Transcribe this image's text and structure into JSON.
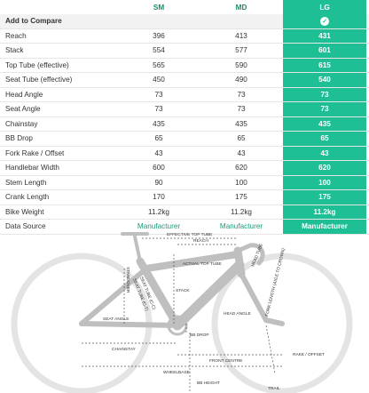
{
  "sizes": [
    "SM",
    "MD",
    "LG"
  ],
  "compare_label": "Add to Compare",
  "rows": [
    {
      "label": "Reach",
      "values": [
        "396",
        "413",
        "431"
      ]
    },
    {
      "label": "Stack",
      "values": [
        "554",
        "577",
        "601"
      ]
    },
    {
      "label": "Top Tube (effective)",
      "values": [
        "565",
        "590",
        "615"
      ]
    },
    {
      "label": "Seat Tube (effective)",
      "values": [
        "450",
        "490",
        "540"
      ]
    },
    {
      "label": "Head Angle",
      "values": [
        "73",
        "73",
        "73"
      ]
    },
    {
      "label": "Seat Angle",
      "values": [
        "73",
        "73",
        "73"
      ]
    },
    {
      "label": "Chainstay",
      "values": [
        "435",
        "435",
        "435"
      ]
    },
    {
      "label": "BB Drop",
      "values": [
        "65",
        "65",
        "65"
      ]
    },
    {
      "label": "Fork Rake / Offset",
      "values": [
        "43",
        "43",
        "43"
      ]
    },
    {
      "label": "Handlebar Width",
      "values": [
        "600",
        "620",
        "620"
      ]
    },
    {
      "label": "Stem Length",
      "values": [
        "90",
        "100",
        "100"
      ]
    },
    {
      "label": "Crank Length",
      "values": [
        "170",
        "175",
        "175"
      ]
    },
    {
      "label": "Bike Weight",
      "values": [
        "11.2kg",
        "11.2kg",
        "11.2kg"
      ]
    },
    {
      "label": "Data Source",
      "values": [
        "Manufacturer",
        "Manufacturer",
        "Manufacturer"
      ]
    }
  ],
  "diagram": {
    "effective_top_tube": "EFFECTIVE TOP TUBE",
    "reach": "REACH",
    "actual_top_tube": "ACTUAL TOP TUBE",
    "stack": "STACK",
    "seat_angle": "SEAT ANGLE",
    "head_angle": "HEAD ANGLE",
    "chainstay": "CHAINSTAY",
    "bb_drop": "BB DROP",
    "front_centre": "FRONT CENTRE",
    "rake_offset": "RAKE / OFFSET",
    "wheelbase": "WHEELBASE",
    "bb_height": "BB HEIGHT",
    "trail": "TRAIL",
    "head_tube": "HEAD TUBE",
    "fork_length": "FORK LENGTH (AXLE TO CROWN)",
    "seat_tube_ct": "SEAT TUBE (C-T)",
    "seat_tube_cc": "SEAT TUBE (C-C)",
    "standover": "STANDOVER",
    "colors": {
      "frame": "#bfbfbf",
      "wheel": "#e4e4e4",
      "line": "#555555",
      "accent": "#1fbf96"
    }
  }
}
